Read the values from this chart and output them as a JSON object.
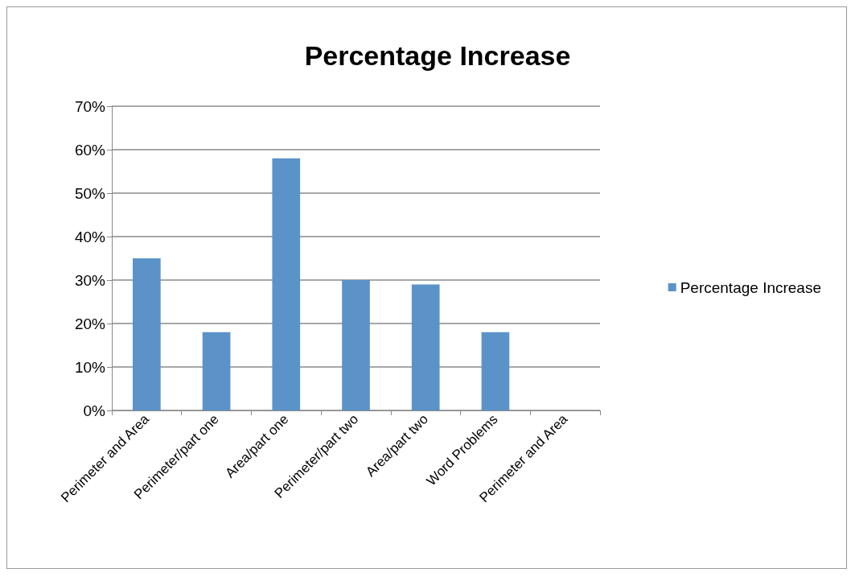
{
  "chart_data": {
    "type": "bar",
    "title": "Percentage Increase",
    "categories": [
      "Perimeter and Area",
      "Perimeter/part one",
      "Area/part one",
      "Perimeter/part two",
      "Area/part two",
      "Word Problems",
      "Perimeter and Area"
    ],
    "series": [
      {
        "name": "Percentage Increase",
        "color": "#5b93c9",
        "values": [
          35,
          18,
          58,
          30,
          29,
          18,
          null
        ]
      }
    ],
    "ylim": [
      0,
      70
    ],
    "yticks": [
      {
        "value": 0,
        "label": "0%"
      },
      {
        "value": 10,
        "label": "10%"
      },
      {
        "value": 20,
        "label": "20%"
      },
      {
        "value": 30,
        "label": "30%"
      },
      {
        "value": 40,
        "label": "40%"
      },
      {
        "value": 50,
        "label": "50%"
      },
      {
        "value": 60,
        "label": "60%"
      },
      {
        "value": 70,
        "label": "70%"
      }
    ],
    "grid": "y",
    "legend": "right"
  }
}
